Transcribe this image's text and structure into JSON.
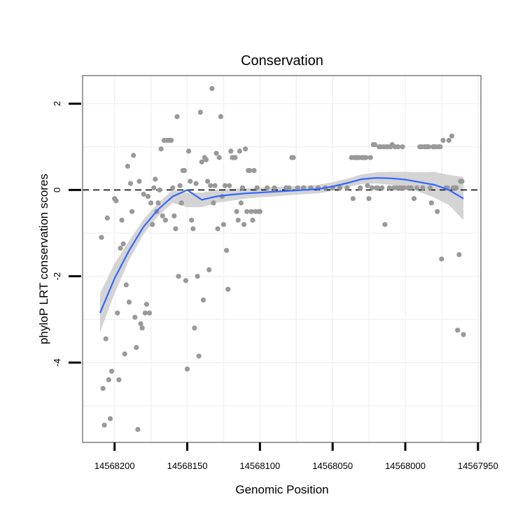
{
  "chart_data": {
    "type": "scatter",
    "title": "Conservation",
    "xlabel": "Genomic Position",
    "ylabel": "phyloP LRT conservation scores",
    "x_reversed": true,
    "xlim": [
      14568222,
      14567948
    ],
    "ylim": [
      -5.85,
      2.65
    ],
    "x_ticks": [
      14568200,
      14568150,
      14568100,
      14568050,
      14568000,
      14567950
    ],
    "x_tick_labels": [
      "14568200",
      "14568150",
      "14568100",
      "14568050",
      "14568000",
      "14567950"
    ],
    "y_ticks": [
      2,
      0,
      -2,
      -4
    ],
    "y_tick_labels": [
      "2",
      "0",
      "-2",
      "-4"
    ],
    "grid": true,
    "reference_line": {
      "y": 0,
      "style": "dashed"
    },
    "colors": {
      "points": "#999999",
      "smooth": "#3366FF",
      "ribbon": "#CCCCCC",
      "panel_border": "#7F7F7F",
      "grid": "#F2F2F2"
    },
    "points": [
      [
        14568209,
        -1.1
      ],
      [
        14568208,
        -4.6
      ],
      [
        14568207,
        -5.45
      ],
      [
        14568206,
        -3.45
      ],
      [
        14568205,
        -0.65
      ],
      [
        14568204,
        -4.4
      ],
      [
        14568203,
        -5.3
      ],
      [
        14568202,
        -4.2
      ],
      [
        14568200,
        -0.2
      ],
      [
        14568199,
        -0.25
      ],
      [
        14568198,
        -2.85
      ],
      [
        14568197,
        -4.4
      ],
      [
        14568196,
        -1.35
      ],
      [
        14568195,
        -0.7
      ],
      [
        14568194,
        -1.25
      ],
      [
        14568193,
        -3.8
      ],
      [
        14568192,
        -2.2
      ],
      [
        14568191,
        0.55
      ],
      [
        14568190,
        -2.6
      ],
      [
        14568189,
        0.15
      ],
      [
        14568188,
        -0.5
      ],
      [
        14568187,
        0.8
      ],
      [
        14568186,
        -2.95
      ],
      [
        14568185,
        -3.65
      ],
      [
        14568184,
        -5.55
      ],
      [
        14568183,
        0.2
      ],
      [
        14568182,
        -3.1
      ],
      [
        14568181,
        -3.2
      ],
      [
        14568180,
        -0.1
      ],
      [
        14568179,
        -2.85
      ],
      [
        14568178,
        -2.65
      ],
      [
        14568177,
        -0.15
      ],
      [
        14568176,
        -2.85
      ],
      [
        14568175,
        -0.3
      ],
      [
        14568174,
        -0.8
      ],
      [
        14568173,
        0.05
      ],
      [
        14568172,
        0.25
      ],
      [
        14568171,
        -0.5
      ],
      [
        14568170,
        -0.3
      ],
      [
        14568169,
        0.0
      ],
      [
        14568168,
        0.95
      ],
      [
        14568167,
        -0.6
      ],
      [
        14568166,
        1.15
      ],
      [
        14568165,
        -0.7
      ],
      [
        14568164,
        1.15
      ],
      [
        14568163,
        1.15
      ],
      [
        14568162,
        1.15
      ],
      [
        14568161,
        1.15
      ],
      [
        14568160,
        0.05
      ],
      [
        14568159,
        -0.6
      ],
      [
        14568158,
        -0.9
      ],
      [
        14568157,
        1.7
      ],
      [
        14568156,
        -2.0
      ],
      [
        14568155,
        0.1
      ],
      [
        14568154,
        -0.3
      ],
      [
        14568153,
        0.45
      ],
      [
        14568152,
        0.45
      ],
      [
        14568151,
        -2.1
      ],
      [
        14568150,
        -4.15
      ],
      [
        14568149,
        0.9
      ],
      [
        14568148,
        0.2
      ],
      [
        14568147,
        -0.7
      ],
      [
        14568146,
        -0.9
      ],
      [
        14568145,
        -3.2
      ],
      [
        14568144,
        0.15
      ],
      [
        14568143,
        -2.0
      ],
      [
        14568142,
        -3.85
      ],
      [
        14568141,
        1.8
      ],
      [
        14568140,
        0.65
      ],
      [
        14568139,
        -2.55
      ],
      [
        14568138,
        0.75
      ],
      [
        14568137,
        0.7
      ],
      [
        14568136,
        0.2
      ],
      [
        14568135,
        -1.85
      ],
      [
        14568134,
        0.1
      ],
      [
        14568133,
        2.35
      ],
      [
        14568132,
        -0.3
      ],
      [
        14568131,
        0.1
      ],
      [
        14568130,
        0.85
      ],
      [
        14568129,
        -0.9
      ],
      [
        14568128,
        0.75
      ],
      [
        14568127,
        1.7
      ],
      [
        14568126,
        -0.15
      ],
      [
        14568125,
        -0.8
      ],
      [
        14568124,
        0.1
      ],
      [
        14568123,
        -1.4
      ],
      [
        14568122,
        -2.3
      ],
      [
        14568121,
        0.1
      ],
      [
        14568120,
        0.9
      ],
      [
        14568119,
        0.75
      ],
      [
        14568118,
        0.75
      ],
      [
        14568117,
        0.75
      ],
      [
        14568116,
        -0.5
      ],
      [
        14568115,
        -0.7
      ],
      [
        14568114,
        0.9
      ],
      [
        14568113,
        -0.3
      ],
      [
        14568112,
        0.05
      ],
      [
        14568111,
        -0.8
      ],
      [
        14568110,
        0.95
      ],
      [
        14568109,
        -0.5
      ],
      [
        14568108,
        0.45
      ],
      [
        14568107,
        0.45
      ],
      [
        14568106,
        -0.5
      ],
      [
        14568105,
        -0.7
      ],
      [
        14568104,
        0.45
      ],
      [
        14568103,
        -0.5
      ],
      [
        14568102,
        0.05
      ],
      [
        14568101,
        -0.5
      ],
      [
        14568100,
        -0.5
      ],
      [
        14568095,
        0.05
      ],
      [
        14568090,
        0.05
      ],
      [
        14568082,
        0.05
      ],
      [
        14568080,
        0.05
      ],
      [
        14568078,
        0.75
      ],
      [
        14568077,
        0.75
      ],
      [
        14568074,
        0.05
      ],
      [
        14568070,
        0.05
      ],
      [
        14568065,
        0.05
      ],
      [
        14568060,
        0.05
      ],
      [
        14568055,
        0.05
      ],
      [
        14568050,
        0.05
      ],
      [
        14568045,
        0.05
      ],
      [
        14568040,
        0.05
      ],
      [
        14568037,
        0.75
      ],
      [
        14568036,
        -0.2
      ],
      [
        14568035,
        0.75
      ],
      [
        14568034,
        0.75
      ],
      [
        14568033,
        0.75
      ],
      [
        14568032,
        0.75
      ],
      [
        14568031,
        0.05
      ],
      [
        14568030,
        0.75
      ],
      [
        14568029,
        0.75
      ],
      [
        14568028,
        0.75
      ],
      [
        14568027,
        0.75
      ],
      [
        14568026,
        0.1
      ],
      [
        14568025,
        -0.2
      ],
      [
        14568024,
        0.75
      ],
      [
        14568023,
        0.05
      ],
      [
        14568022,
        1.05
      ],
      [
        14568021,
        1.05
      ],
      [
        14568020,
        0.05
      ],
      [
        14568019,
        0.05
      ],
      [
        14568018,
        1.0
      ],
      [
        14568017,
        1.0
      ],
      [
        14568016,
        0.05
      ],
      [
        14568015,
        1.0
      ],
      [
        14568014,
        -0.8
      ],
      [
        14568013,
        1.0
      ],
      [
        14568012,
        1.0
      ],
      [
        14568011,
        0.05
      ],
      [
        14568010,
        1.0
      ],
      [
        14568009,
        1.05
      ],
      [
        14568008,
        0.05
      ],
      [
        14568007,
        1.0
      ],
      [
        14568006,
        0.05
      ],
      [
        14568005,
        1.0
      ],
      [
        14568004,
        0.05
      ],
      [
        14568003,
        0.05
      ],
      [
        14568002,
        1.0
      ],
      [
        14568001,
        0.05
      ],
      [
        14567998,
        0.05
      ],
      [
        14567996,
        0.05
      ],
      [
        14567994,
        -0.2
      ],
      [
        14567992,
        0.05
      ],
      [
        14567990,
        1.0
      ],
      [
        14567989,
        1.0
      ],
      [
        14567988,
        0.05
      ],
      [
        14567987,
        1.0
      ],
      [
        14567986,
        1.0
      ],
      [
        14567985,
        1.0
      ],
      [
        14567984,
        1.0
      ],
      [
        14567983,
        0.05
      ],
      [
        14567982,
        -0.3
      ],
      [
        14567981,
        1.0
      ],
      [
        14567980,
        1.0
      ],
      [
        14567979,
        1.0
      ],
      [
        14567978,
        -0.5
      ],
      [
        14567977,
        1.0
      ],
      [
        14567976,
        1.0
      ],
      [
        14567975,
        -1.6
      ],
      [
        14567974,
        1.15
      ],
      [
        14567972,
        0.05
      ],
      [
        14567971,
        0.05
      ],
      [
        14567970,
        1.15
      ],
      [
        14567968,
        1.25
      ],
      [
        14567967,
        0.05
      ],
      [
        14567966,
        0.05
      ],
      [
        14567965,
        0.05
      ],
      [
        14567964,
        -3.25
      ],
      [
        14567963,
        -1.5
      ],
      [
        14567962,
        0.2
      ],
      [
        14567961,
        0.2
      ],
      [
        14567960,
        -3.35
      ]
    ],
    "smooth_curve": {
      "x": [
        14568210,
        14568200,
        14568190,
        14568180,
        14568170,
        14568160,
        14568150,
        14568140,
        14568130,
        14568120,
        14568110,
        14568100,
        14568090,
        14568080,
        14568070,
        14568060,
        14568050,
        14568040,
        14568030,
        14568020,
        14568010,
        14568000,
        14567990,
        14567980,
        14567970,
        14567960
      ],
      "y": [
        -2.85,
        -2.05,
        -1.4,
        -0.85,
        -0.45,
        -0.15,
        -0.0,
        -0.23,
        -0.15,
        -0.11,
        -0.08,
        -0.06,
        -0.04,
        -0.02,
        0.0,
        0.02,
        0.08,
        0.16,
        0.25,
        0.28,
        0.27,
        0.24,
        0.18,
        0.12,
        0.0,
        -0.2
      ],
      "lower": [
        -3.3,
        -2.4,
        -1.62,
        -1.02,
        -0.6,
        -0.3,
        -0.4,
        -0.4,
        -0.3,
        -0.25,
        -0.2,
        -0.17,
        -0.15,
        -0.12,
        -0.1,
        -0.08,
        -0.02,
        0.06,
        0.14,
        0.15,
        0.12,
        0.06,
        -0.05,
        -0.18,
        -0.35,
        -0.7
      ],
      "upper": [
        -2.4,
        -1.7,
        -1.18,
        -0.68,
        -0.3,
        0.0,
        -0.06,
        -0.06,
        0.0,
        0.03,
        0.04,
        0.05,
        0.07,
        0.08,
        0.1,
        0.12,
        0.18,
        0.26,
        0.36,
        0.41,
        0.42,
        0.42,
        0.41,
        0.42,
        0.35,
        0.3
      ]
    }
  }
}
